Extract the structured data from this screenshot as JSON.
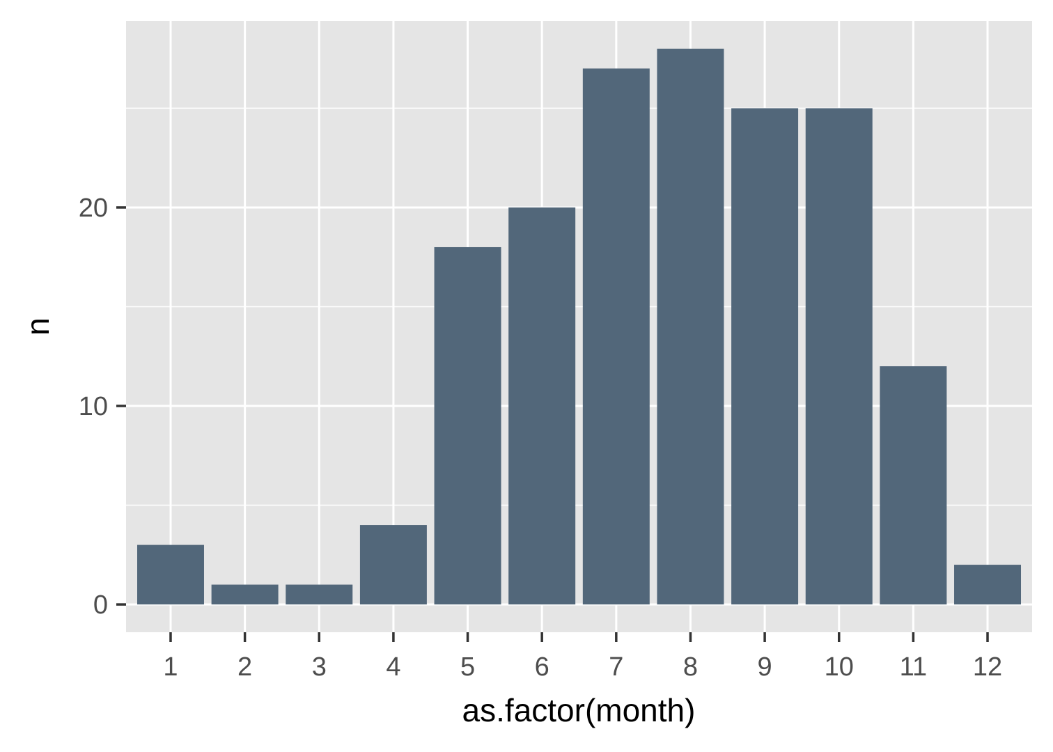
{
  "chart_data": {
    "type": "bar",
    "categories": [
      "1",
      "2",
      "3",
      "4",
      "5",
      "6",
      "7",
      "8",
      "9",
      "10",
      "11",
      "12"
    ],
    "values": [
      3,
      1,
      1,
      4,
      18,
      20,
      27,
      28,
      25,
      25,
      12,
      2
    ],
    "xlabel": "as.factor(month)",
    "ylabel": "n",
    "yticks": [
      0,
      10,
      20
    ],
    "ylim": [
      -1.4,
      29.4
    ],
    "grid": true,
    "legend": "none",
    "colors": {
      "bar": "#52677a",
      "panel": "#e5e5e5",
      "grid": "#ffffff",
      "tick_text": "#4d4d4d",
      "tick_mark": "#333333"
    }
  }
}
